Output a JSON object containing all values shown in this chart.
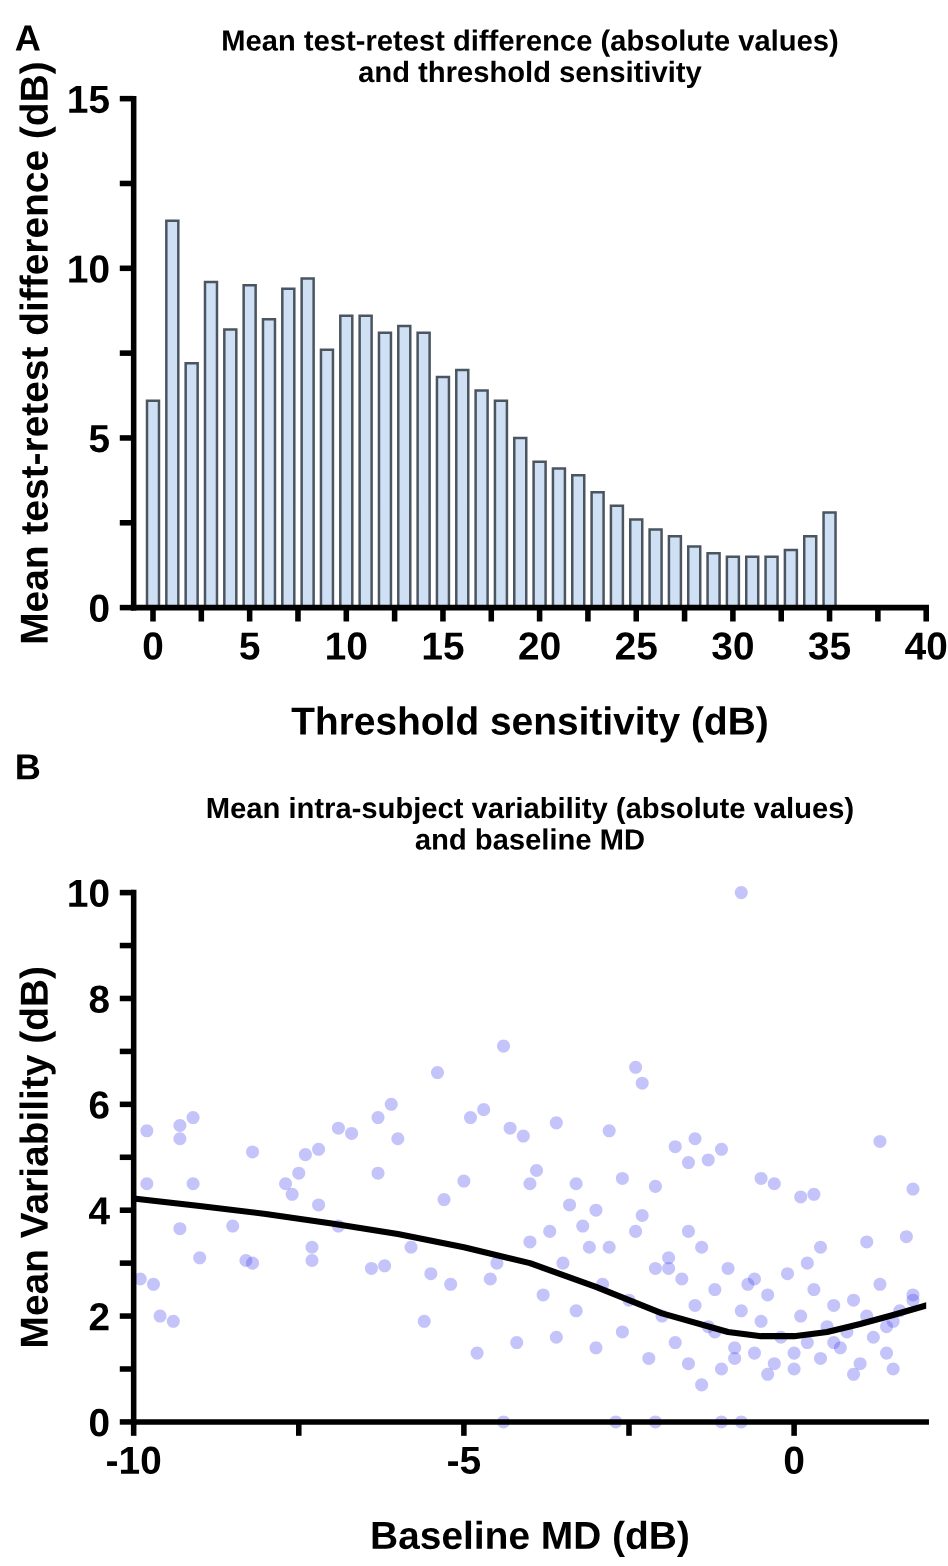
{
  "chart_data": [
    {
      "type": "bar",
      "title": "Mean test-retest difference (absolute values)\nand threshold sensitivity",
      "xlabel": "Threshold sensitivity (dB)",
      "ylabel": "Mean test-retest difference (dB)",
      "annotations": [
        "A"
      ],
      "x": [
        0,
        1,
        2,
        3,
        4,
        5,
        6,
        7,
        8,
        9,
        10,
        11,
        12,
        13,
        14,
        15,
        16,
        17,
        18,
        19,
        20,
        21,
        22,
        23,
        24,
        25,
        26,
        27,
        28,
        29,
        30,
        31,
        32,
        33,
        34,
        35
      ],
      "values": [
        6.1,
        11.4,
        7.2,
        9.6,
        8.2,
        9.5,
        8.5,
        9.4,
        9.7,
        7.6,
        8.6,
        8.6,
        8.1,
        8.3,
        8.1,
        6.8,
        7.0,
        6.4,
        6.1,
        5.0,
        4.3,
        4.1,
        3.9,
        3.4,
        3.0,
        2.6,
        2.3,
        2.1,
        1.8,
        1.6,
        1.5,
        1.5,
        1.5,
        1.7,
        2.1,
        2.8
      ],
      "color": "#cfe0f5",
      "xlim": [
        -1,
        40
      ],
      "xticks": [
        0,
        {
          "value": 2.5,
          "label": null
        },
        5,
        {
          "value": 7.5,
          "label": null
        },
        10,
        {
          "value": 12.5,
          "label": null
        },
        15,
        {
          "value": 17.5,
          "label": null
        },
        20,
        {
          "value": 22.5,
          "label": null
        },
        25,
        {
          "value": 27.5,
          "label": null
        },
        30,
        {
          "value": 32.5,
          "label": null
        },
        35,
        {
          "value": 37.5,
          "label": null
        },
        40
      ],
      "ylim": [
        0,
        15
      ],
      "yticks": [
        0,
        {
          "value": 2.5,
          "label": null
        },
        5,
        {
          "value": 7.5,
          "label": null
        },
        10,
        {
          "value": 12.5,
          "label": null
        },
        15
      ]
    },
    {
      "type": "scatter",
      "title": "Mean intra-subject variability (absolute values)\nand baseline MD",
      "xlabel": "Baseline MD (dB)",
      "ylabel": "Mean Variability (dB)",
      "annotations": [
        "B"
      ],
      "series": [
        {
          "type": "scatter",
          "color": "#3c3cf0",
          "x": [
            -9.9,
            -9.8,
            -9.8,
            -9.7,
            -9.6,
            -9.4,
            -9.3,
            -9.3,
            -9.3,
            -9.1,
            -9.1,
            -9.0,
            -8.5,
            -8.3,
            -8.2,
            -8.2,
            -7.7,
            -7.6,
            -7.5,
            -7.4,
            -7.3,
            -7.3,
            -7.2,
            -7.2,
            -6.9,
            -6.9,
            -6.7,
            -6.4,
            -6.3,
            -6.3,
            -6.2,
            -6.1,
            -6.0,
            -5.8,
            -5.6,
            -5.5,
            -5.4,
            -5.3,
            -5.2,
            -5.0,
            -4.9,
            -4.7,
            -4.5,
            -4.4,
            -4.3,
            -4.1,
            -4.0,
            -3.9,
            -3.7,
            -3.6,
            -3.4,
            -3.3,
            -3.1,
            -3.0,
            -2.8,
            -2.6,
            -2.4,
            -2.3,
            -2.1,
            -1.8,
            -1.6,
            -1.5,
            -1.3,
            -1.1,
            -0.8,
            -0.5,
            -0.3,
            0.1,
            0.3,
            1.3,
            1.8,
            -4.4,
            -2.7,
            -2.1,
            -1.1,
            -0.8,
            -1.4,
            -4.8,
            -4.6,
            -4.2,
            -4.0,
            -3.8,
            -3.6,
            -3.5,
            -3.3,
            -3.2,
            -3.0,
            -2.9,
            -2.8,
            -2.6,
            -2.5,
            -2.4,
            -2.2,
            -2.1,
            -2.0,
            -1.9,
            -1.8,
            -1.7,
            -1.6,
            -1.5,
            -1.4,
            -1.3,
            -1.2,
            -1.1,
            -1.0,
            -0.9,
            -0.8,
            -0.7,
            -0.6,
            -0.5,
            -0.4,
            -0.3,
            -0.2,
            -0.1,
            0.0,
            0.1,
            0.2,
            0.3,
            0.4,
            0.5,
            0.6,
            0.7,
            0.8,
            0.9,
            1.0,
            1.1,
            1.2,
            1.3,
            1.4,
            1.5,
            1.6,
            1.7,
            1.8,
            -2.3,
            -1.6,
            -0.9,
            -0.4,
            0.2,
            0.6,
            1.1,
            1.5,
            -1.9,
            -1.2,
            -0.6,
            0.0,
            0.4,
            0.9,
            1.4,
            1.8
          ],
          "values": [
            2.7,
            4.5,
            5.5,
            2.6,
            2.0,
            1.9,
            5.6,
            5.35,
            3.65,
            5.75,
            4.5,
            3.1,
            3.7,
            3.05,
            5.1,
            3.0,
            4.5,
            4.3,
            4.7,
            5.05,
            3.3,
            3.05,
            4.1,
            5.15,
            5.55,
            3.7,
            5.45,
            2.9,
            4.7,
            5.75,
            2.95,
            6.0,
            5.35,
            3.3,
            1.9,
            2.8,
            6.6,
            4.2,
            2.6,
            4.55,
            5.75,
            5.9,
            3.0,
            7.1,
            5.55,
            5.4,
            4.5,
            4.75,
            3.6,
            5.65,
            4.1,
            4.5,
            3.3,
            4.0,
            5.5,
            4.6,
            6.7,
            6.4,
            4.45,
            5.2,
            4.9,
            5.35,
            4.95,
            5.15,
            10.0,
            4.6,
            4.5,
            4.25,
            4.3,
            5.3,
            4.4,
            0,
            0,
            0,
            0,
            0,
            0.7,
            1.3,
            2.7,
            1.5,
            3.4,
            2.4,
            1.6,
            3.0,
            2.1,
            3.7,
            1.4,
            2.6,
            3.3,
            1.7,
            2.3,
            3.6,
            1.2,
            2.9,
            2.0,
            3.1,
            1.5,
            2.7,
            1.1,
            2.2,
            3.3,
            1.8,
            2.5,
            1.0,
            2.9,
            1.4,
            2.1,
            2.6,
            1.3,
            1.9,
            2.4,
            1.1,
            1.6,
            2.8,
            1.3,
            2.0,
            1.5,
            2.5,
            1.2,
            1.8,
            2.2,
            1.4,
            1.7,
            2.3,
            1.1,
            2.0,
            1.6,
            2.6,
            1.3,
            1.9,
            2.1,
            3.5,
            2.3,
            3.9,
            3.6,
            1.2,
            0.9,
            3.0,
            1.5,
            3.4,
            1.0,
            2.9,
            1.7,
            2.7,
            1.0,
            3.3,
            0.9,
            1.8,
            2.4
          ]
        },
        {
          "type": "line",
          "color": "#000000",
          "x": [
            -10,
            -9,
            -8,
            -7,
            -6,
            -5,
            -4,
            -3,
            -2,
            -1,
            -0.5,
            0,
            0.5,
            1,
            1.5,
            2
          ],
          "values": [
            4.22,
            4.08,
            3.93,
            3.75,
            3.55,
            3.3,
            3.0,
            2.55,
            2.05,
            1.7,
            1.62,
            1.62,
            1.7,
            1.85,
            2.02,
            2.2
          ]
        }
      ],
      "xlim": [
        -10,
        2
      ],
      "xticks": [
        -10,
        {
          "value": -7.5,
          "label": null
        },
        -5,
        {
          "value": -2.5,
          "label": null
        },
        0
      ],
      "ylim": [
        0,
        10
      ],
      "yticks": [
        0,
        {
          "value": 1,
          "label": null
        },
        2,
        {
          "value": 3,
          "label": null
        },
        4,
        {
          "value": 5,
          "label": null
        },
        6,
        {
          "value": 7,
          "label": null
        },
        8,
        {
          "value": 9,
          "label": null
        },
        10
      ]
    }
  ]
}
